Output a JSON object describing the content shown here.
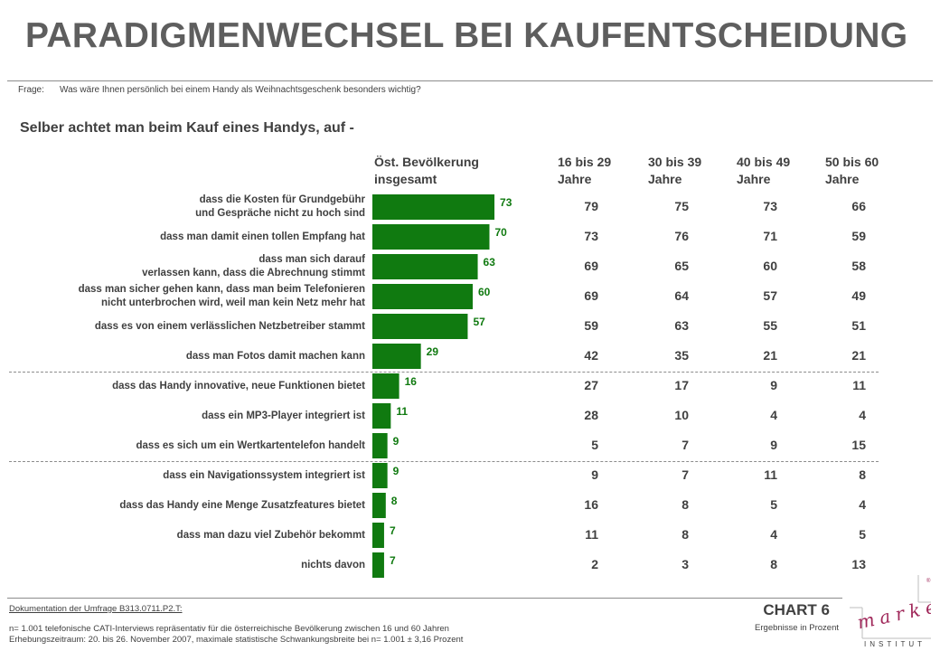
{
  "title": "PARADIGMENWECHSEL BEI KAUFENTSCHEIDUNG",
  "question": {
    "label": "Frage:",
    "text": "Was wäre Ihnen persönlich bei einem Handy als Weihnachtsgeschenk besonders wichtig?"
  },
  "subtitle": "Selber achtet man beim Kauf eines Handys, auf -",
  "columns": {
    "total": [
      "Öst. Bevölkerung",
      "insgesamt"
    ],
    "age1": [
      "16 bis 29",
      "Jahre"
    ],
    "age2": [
      "30 bis 39",
      "Jahre"
    ],
    "age3": [
      "40 bis 49",
      "Jahre"
    ],
    "age4": [
      "50 bis 60",
      "Jahre"
    ]
  },
  "colors": {
    "bar": "#107a10",
    "bar_value": "#107a10",
    "text": "#404040",
    "title": "#5e5e5e",
    "logo": "#a0285a"
  },
  "chart_data": {
    "type": "bar",
    "orientation": "horizontal",
    "unit": "Prozent",
    "categories": [
      [
        "dass die Kosten für Grundgebühr",
        "und Gespräche nicht zu hoch sind"
      ],
      [
        "dass man damit einen tollen Empfang hat"
      ],
      [
        "dass man sich darauf",
        "verlassen kann, dass die Abrechnung stimmt"
      ],
      [
        "dass man sicher gehen kann, dass man beim Telefonieren",
        "nicht unterbrochen  wird, weil man kein Netz mehr hat"
      ],
      [
        "dass es von einem verlässlichen Netzbetreiber stammt"
      ],
      [
        "dass man Fotos damit machen kann"
      ],
      [
        "dass das Handy innovative, neue Funktionen bietet"
      ],
      [
        "dass ein MP3-Player integriert ist"
      ],
      [
        "dass es sich um ein Wertkartentelefon  handelt"
      ],
      [
        "dass ein Navigationssystem  integriert ist"
      ],
      [
        "dass das Handy eine Menge Zusatzfeatures  bietet"
      ],
      [
        "dass man dazu viel Zubehör bekommt"
      ],
      [
        "nichts davon"
      ]
    ],
    "series": [
      {
        "name": "Öst. Bevölkerung insgesamt",
        "values": [
          73,
          70,
          63,
          60,
          57,
          29,
          16,
          11,
          9,
          9,
          8,
          7,
          7
        ],
        "display": "bar"
      },
      {
        "name": "16 bis 29 Jahre",
        "values": [
          79,
          73,
          69,
          69,
          59,
          42,
          27,
          28,
          5,
          9,
          16,
          11,
          2
        ],
        "display": "table"
      },
      {
        "name": "30 bis 39 Jahre",
        "values": [
          75,
          76,
          65,
          64,
          63,
          35,
          17,
          10,
          7,
          7,
          8,
          8,
          3
        ],
        "display": "table"
      },
      {
        "name": "40 bis 49 Jahre",
        "values": [
          73,
          71,
          60,
          57,
          55,
          21,
          9,
          4,
          9,
          11,
          5,
          4,
          8
        ],
        "display": "table"
      },
      {
        "name": "50 bis 60 Jahre",
        "values": [
          66,
          59,
          58,
          49,
          51,
          21,
          11,
          4,
          15,
          8,
          4,
          5,
          13
        ],
        "display": "table"
      }
    ],
    "xlim": [
      0,
      100
    ],
    "group_breaks_after": [
      5,
      8
    ]
  },
  "footer": {
    "doc_link": "Dokumentation der Umfrage B313.0711.P2.T:",
    "line1": "n= 1.001 telefonische CATI-Interviews repräsentativ für die österreichische Bevölkerung zwischen 16 und 60 Jahren",
    "line2": "Erhebungszeitraum: 20. bis 26. November 2007, maximale statistische Schwankungsbreite bei n= 1.001 ± 3,16 Prozent",
    "chart_no": "CHART 6",
    "result_note": "Ergebnisse in Prozent"
  },
  "logo": {
    "word": "market",
    "sub": "INSTITUT",
    "mark": "®"
  }
}
